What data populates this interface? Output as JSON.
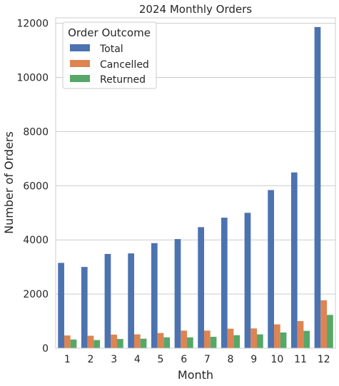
{
  "chart_data": {
    "type": "bar",
    "title": "2024 Monthly Orders",
    "xlabel": "Month",
    "ylabel": "Number of Orders",
    "ylim": [
      0,
      12200
    ],
    "yticks": [
      0,
      2000,
      4000,
      6000,
      8000,
      10000,
      12000
    ],
    "grid": true,
    "legend_title": "Order Outcome",
    "legend_position": "top-left",
    "categories": [
      "1",
      "2",
      "3",
      "4",
      "5",
      "6",
      "7",
      "8",
      "9",
      "10",
      "11",
      "12"
    ],
    "series": [
      {
        "name": "Total",
        "color": "#4c72b0",
        "values": [
          3150,
          3000,
          3480,
          3500,
          3880,
          4030,
          4470,
          4820,
          5000,
          5840,
          6490,
          11860
        ]
      },
      {
        "name": "Cancelled",
        "color": "#dd8452",
        "values": [
          470,
          460,
          500,
          510,
          560,
          650,
          650,
          720,
          730,
          880,
          1000,
          1770
        ]
      },
      {
        "name": "Returned",
        "color": "#55a868",
        "values": [
          320,
          300,
          340,
          350,
          400,
          400,
          420,
          480,
          510,
          580,
          640,
          1230
        ]
      }
    ]
  }
}
